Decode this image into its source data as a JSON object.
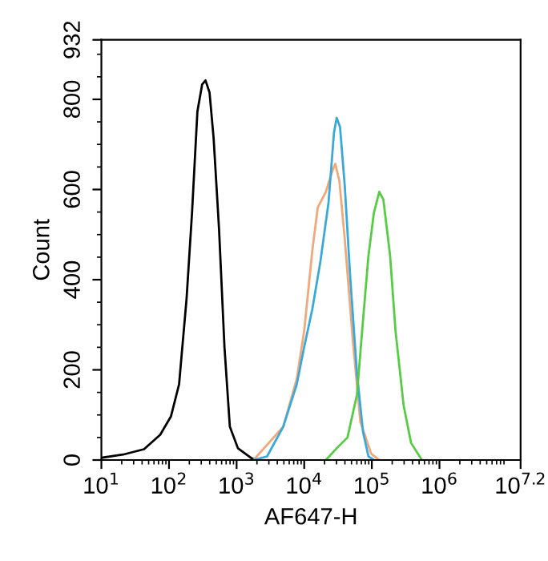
{
  "chart_data": {
    "type": "line",
    "xlabel": "AF647-H",
    "ylabel": "Count",
    "log": "x",
    "xlim": [
      10,
      15848932
    ],
    "ylim": [
      0,
      932
    ],
    "xticks": [
      {
        "value": 10,
        "label": "10$^{1}$"
      },
      {
        "value": 100,
        "label": "10$^{2}$"
      },
      {
        "value": 1000,
        "label": "10$^{3}$"
      },
      {
        "value": 10000,
        "label": "10$^{4}$"
      },
      {
        "value": 100000,
        "label": "10$^{5}$"
      },
      {
        "value": 1000000,
        "label": "10$^{6}$"
      },
      {
        "value": 15848932,
        "label": "10$^{7.2}$"
      }
    ],
    "yticks": [
      0,
      200,
      400,
      600,
      800,
      932
    ],
    "grid": false,
    "legend": false,
    "marker": "none",
    "line_style": "solid",
    "series": [
      {
        "color": "#000000",
        "x": [
          10,
          20.9,
          42.7,
          74.1,
          107,
          141,
          182,
          219,
          263,
          309,
          347,
          398,
          457,
          550,
          661,
          794,
          1047,
          1622,
          1950
        ],
        "values": [
          5,
          12,
          24,
          56,
          97,
          168,
          358,
          548,
          773,
          833,
          842,
          815,
          714,
          512,
          251,
          74,
          26,
          5,
          0
        ]
      },
      {
        "color": "#f0a878",
        "x": [
          1778,
          4898,
          7762,
          10000,
          13183,
          15849,
          20893,
          26303,
          28840,
          33113,
          39811,
          52481,
          67608,
          97724,
          128825
        ],
        "values": [
          0,
          74,
          180,
          287,
          465,
          560,
          595,
          643,
          657,
          619,
          489,
          263,
          85,
          14,
          0
        ]
      },
      {
        "color": "#3aa8d8",
        "x": [
          1778,
          2818,
          4898,
          7762,
          10000,
          13183,
          17378,
          22909,
          27542,
          30200,
          33884,
          39811,
          47863,
          60256,
          74131,
          89125,
          107152
        ],
        "values": [
          0,
          8,
          74,
          168,
          251,
          335,
          441,
          572,
          726,
          759,
          738,
          607,
          406,
          192,
          62,
          8,
          0
        ]
      },
      {
        "color": "#55cc44",
        "x": [
          20893,
          30200,
          43652,
          60256,
          74131,
          89125,
          107152,
          128825,
          147911,
          186209,
          223872,
          295121,
          380189,
          549541
        ],
        "values": [
          0,
          26,
          50,
          145,
          311,
          453,
          548,
          595,
          578,
          453,
          287,
          121,
          38,
          0
        ]
      }
    ]
  }
}
